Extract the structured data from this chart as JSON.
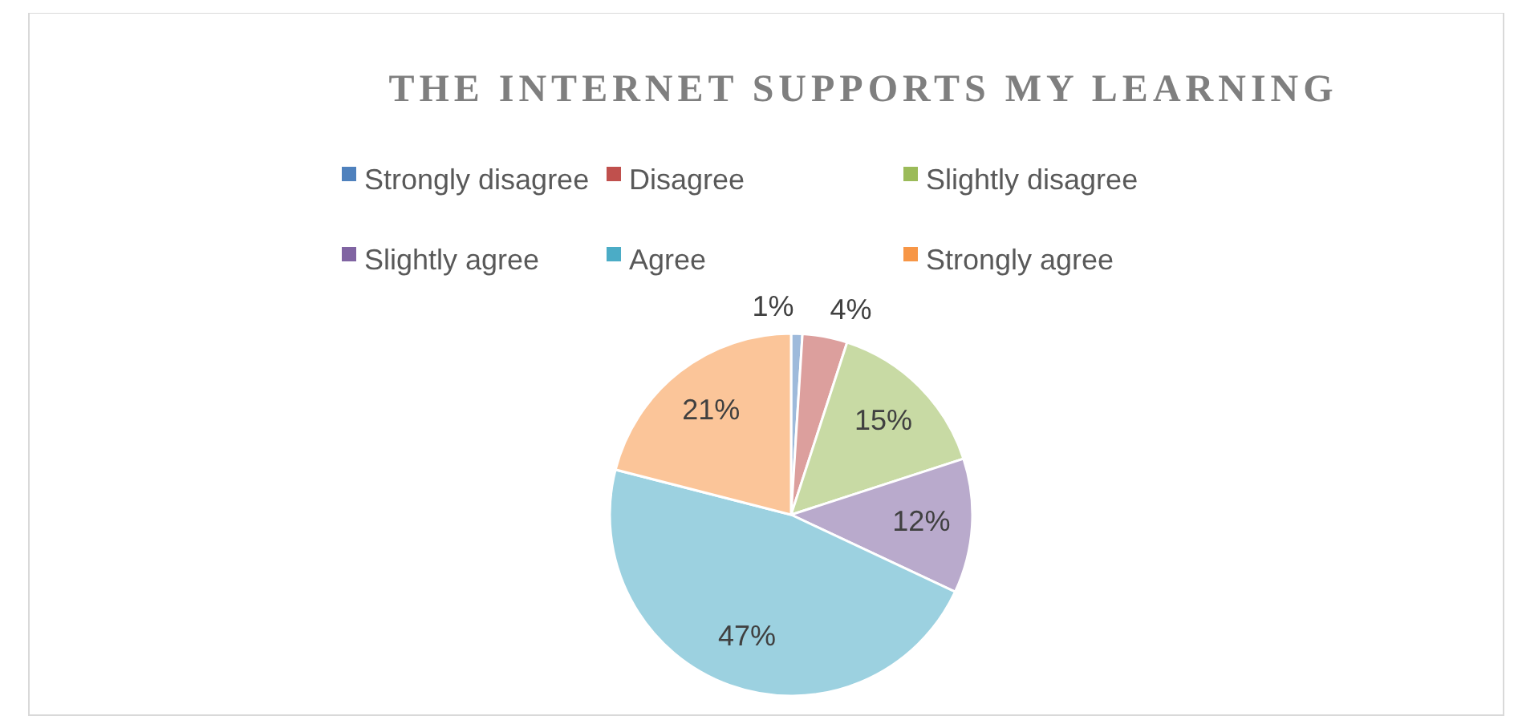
{
  "chart_data": {
    "type": "pie",
    "title": "THE INTERNET SUPPORTS MY LEARNING",
    "categories": [
      "Strongly disagree",
      "Disagree",
      "Slightly disagree",
      "Slightly agree",
      "Agree",
      "Strongly agree"
    ],
    "values": [
      1,
      4,
      15,
      12,
      47,
      21
    ],
    "colors": [
      "#4f81bd",
      "#c0504d",
      "#9bbb59",
      "#8064a2",
      "#4bacc6",
      "#f79646"
    ],
    "value_labels": [
      "1%",
      "4%",
      "15%",
      "12%",
      "47%",
      "21%"
    ],
    "legend": "top"
  }
}
